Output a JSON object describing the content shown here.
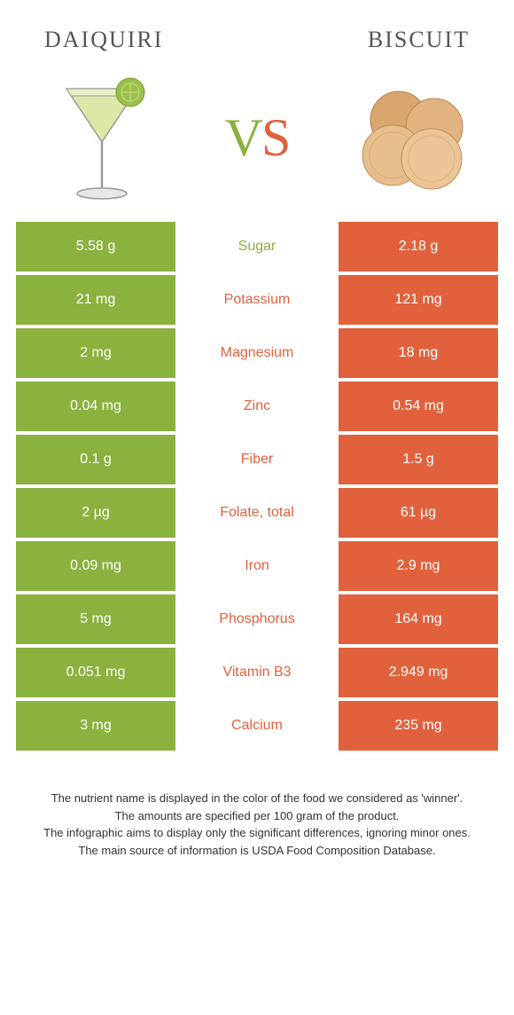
{
  "header": {
    "left_title": "Daiquiri",
    "right_title": "Biscuit"
  },
  "vs": {
    "v": "V",
    "s": "S"
  },
  "colors": {
    "left": "#8bb13f",
    "right": "#e1613c",
    "text_dark": "#555555",
    "footer_text": "#333333",
    "background": "#ffffff"
  },
  "rows": [
    {
      "left": "5.58 g",
      "label": "Sugar",
      "right": "2.18 g",
      "winner": "left"
    },
    {
      "left": "21 mg",
      "label": "Potassium",
      "right": "121 mg",
      "winner": "right"
    },
    {
      "left": "2 mg",
      "label": "Magnesium",
      "right": "18 mg",
      "winner": "right"
    },
    {
      "left": "0.04 mg",
      "label": "Zinc",
      "right": "0.54 mg",
      "winner": "right"
    },
    {
      "left": "0.1 g",
      "label": "Fiber",
      "right": "1.5 g",
      "winner": "right"
    },
    {
      "left": "2 µg",
      "label": "Folate, total",
      "right": "61 µg",
      "winner": "right"
    },
    {
      "left": "0.09 mg",
      "label": "Iron",
      "right": "2.9 mg",
      "winner": "right"
    },
    {
      "left": "5 mg",
      "label": "Phosphorus",
      "right": "164 mg",
      "winner": "right"
    },
    {
      "left": "0.051 mg",
      "label": "Vitamin B3",
      "right": "2.949 mg",
      "winner": "right"
    },
    {
      "left": "3 mg",
      "label": "Calcium",
      "right": "235 mg",
      "winner": "right"
    }
  ],
  "footer": {
    "line1": "The nutrient name is displayed in the color of the food we considered as 'winner'.",
    "line2": "The amounts are specified per 100 gram of the product.",
    "line3": "The infographic aims to display only the significant differences, ignoring minor ones.",
    "line4": "The main source of information is USDA Food Composition Database."
  }
}
